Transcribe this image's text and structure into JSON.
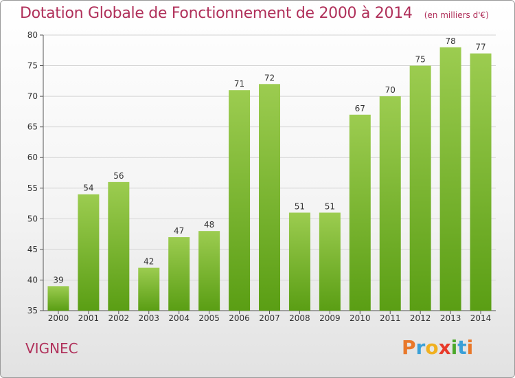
{
  "header": {
    "title": "Dotation Globale de Fonctionnement de 2000 à 2014",
    "subtitle": "(en milliers d'€)"
  },
  "commune": "VIGNEC",
  "logo": {
    "text": "Proxiti",
    "colors": [
      "#e8782a",
      "#3aa0d8",
      "#f0b020",
      "#e83a2a",
      "#4aa82a",
      "#3aa0d8",
      "#e8782a"
    ]
  },
  "colors": {
    "bar_top": "#9ccc50",
    "bar_bottom": "#5a9e14",
    "title": "#b0305a"
  },
  "chart_data": {
    "type": "bar",
    "title": "Dotation Globale de Fonctionnement de 2000 à 2014",
    "subtitle": "(en milliers d'€)",
    "categories": [
      "2000",
      "2001",
      "2002",
      "2003",
      "2004",
      "2005",
      "2006",
      "2007",
      "2008",
      "2009",
      "2010",
      "2011",
      "2012",
      "2013",
      "2014"
    ],
    "values": [
      39,
      54,
      56,
      42,
      47,
      48,
      71,
      72,
      51,
      51,
      67,
      70,
      75,
      78,
      77
    ],
    "ylim": [
      35,
      80
    ],
    "yticks": [
      35,
      40,
      45,
      50,
      55,
      60,
      65,
      70,
      75,
      80
    ],
    "grid": true,
    "xlabel": "",
    "ylabel": ""
  }
}
